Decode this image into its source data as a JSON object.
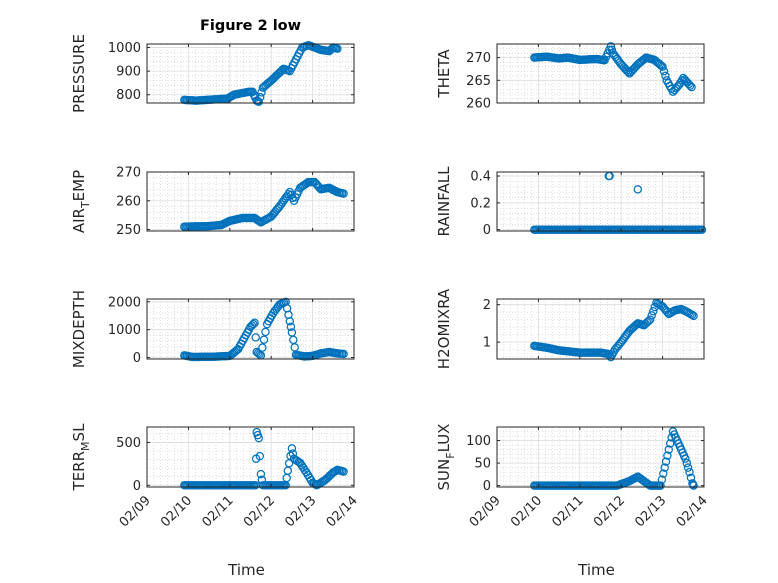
{
  "chart_data": [
    {
      "type": "scatter",
      "title": "Figure 2 low",
      "ylabel": "PRESSURE",
      "ylim": [
        765,
        1015
      ],
      "yticks": [
        800,
        900,
        1000
      ],
      "xlim": [
        "02/09",
        "02/14"
      ],
      "xticks": [
        "02/09",
        "02/10",
        "02/11",
        "02/12",
        "02/13",
        "02/14"
      ],
      "grid": true,
      "series": [
        {
          "x": [],
          "y": []
        }
      ],
      "profile": [
        [
          0.9,
          778
        ],
        [
          1.2,
          775
        ],
        [
          1.6,
          780
        ],
        [
          1.95,
          784
        ],
        [
          2.1,
          800
        ],
        [
          2.45,
          812
        ],
        [
          2.55,
          812
        ],
        [
          2.65,
          775
        ],
        [
          2.7,
          770
        ],
        [
          2.8,
          830
        ],
        [
          3.0,
          860
        ],
        [
          3.3,
          910
        ],
        [
          3.45,
          900
        ],
        [
          3.6,
          950
        ],
        [
          3.75,
          1000
        ],
        [
          3.9,
          1010
        ],
        [
          4.2,
          990
        ],
        [
          4.4,
          985
        ],
        [
          4.5,
          1000
        ],
        [
          4.6,
          995
        ]
      ]
    },
    {
      "type": "scatter",
      "title": "",
      "ylabel": "THETA",
      "ylim": [
        260,
        273
      ],
      "yticks": [
        260,
        265,
        270
      ],
      "xlim": [
        "02/09",
        "02/14"
      ],
      "xticks": [
        "02/09",
        "02/10",
        "02/11",
        "02/12",
        "02/13",
        "02/14"
      ],
      "grid": true,
      "series": [
        {
          "x": [],
          "y": []
        }
      ],
      "profile": [
        [
          0.9,
          270
        ],
        [
          1.2,
          270.2
        ],
        [
          1.5,
          269.8
        ],
        [
          1.7,
          270
        ],
        [
          2.0,
          269.5
        ],
        [
          2.4,
          269.7
        ],
        [
          2.6,
          269.4
        ],
        [
          2.75,
          272.5
        ],
        [
          2.8,
          271
        ],
        [
          3.0,
          268.5
        ],
        [
          3.2,
          266.5
        ],
        [
          3.4,
          268.5
        ],
        [
          3.6,
          270
        ],
        [
          3.8,
          269.5
        ],
        [
          4.0,
          268
        ],
        [
          4.1,
          265
        ],
        [
          4.25,
          262.5
        ],
        [
          4.4,
          264
        ],
        [
          4.5,
          265.5
        ],
        [
          4.6,
          264.5
        ],
        [
          4.7,
          263.5
        ]
      ]
    },
    {
      "type": "scatter",
      "title": "",
      "ylabel": "AIR_TEMP",
      "ylim": [
        249.5,
        270
      ],
      "yticks": [
        250,
        260,
        270
      ],
      "xlim": [
        "02/09",
        "02/14"
      ],
      "xticks": [
        "02/09",
        "02/10",
        "02/11",
        "02/12",
        "02/13",
        "02/14"
      ],
      "grid": true,
      "series": [
        {
          "x": [],
          "y": []
        }
      ],
      "profile": [
        [
          0.9,
          251
        ],
        [
          1.5,
          251.2
        ],
        [
          1.8,
          251.6
        ],
        [
          2.0,
          253
        ],
        [
          2.3,
          254
        ],
        [
          2.6,
          254
        ],
        [
          2.75,
          252.5
        ],
        [
          3.0,
          254.5
        ],
        [
          3.2,
          258
        ],
        [
          3.45,
          263
        ],
        [
          3.55,
          260
        ],
        [
          3.7,
          264.5
        ],
        [
          3.9,
          266.5
        ],
        [
          4.05,
          266.5
        ],
        [
          4.2,
          264
        ],
        [
          4.4,
          264.5
        ],
        [
          4.6,
          263
        ],
        [
          4.75,
          262.5
        ]
      ]
    },
    {
      "type": "scatter",
      "title": "",
      "ylabel": "RAINFALL",
      "ylim": [
        -0.01,
        0.43
      ],
      "yticks": [
        0,
        0.2,
        0.4
      ],
      "xlim": [
        "02/09",
        "02/14"
      ],
      "xticks": [
        "02/09",
        "02/10",
        "02/11",
        "02/12",
        "02/13",
        "02/14"
      ],
      "grid": true,
      "series": [
        {
          "x": [],
          "y": []
        }
      ],
      "profile": [
        [
          0.9,
          0
        ],
        [
          4.95,
          0
        ]
      ],
      "spikes": [
        [
          2.7,
          0.4
        ],
        [
          2.72,
          0.4
        ],
        [
          3.4,
          0.3
        ]
      ]
    },
    {
      "type": "scatter",
      "title": "",
      "ylabel": "MIXDEPTH",
      "ylim": [
        -50,
        2100
      ],
      "yticks": [
        0,
        1000,
        2000
      ],
      "xlim": [
        "02/09",
        "02/14"
      ],
      "xticks": [
        "02/09",
        "02/10",
        "02/11",
        "02/12",
        "02/13",
        "02/14"
      ],
      "grid": true,
      "series": [
        {
          "x": [],
          "y": []
        }
      ],
      "profile": [
        [
          0.9,
          80
        ],
        [
          1.1,
          20
        ],
        [
          1.6,
          30
        ],
        [
          2.0,
          60
        ],
        [
          2.2,
          300
        ],
        [
          2.35,
          700
        ],
        [
          2.5,
          1100
        ],
        [
          2.6,
          1250
        ],
        [
          2.65,
          200
        ],
        [
          2.75,
          80
        ],
        [
          2.9,
          1200
        ],
        [
          3.05,
          1600
        ],
        [
          3.2,
          1900
        ],
        [
          3.35,
          2000
        ],
        [
          3.45,
          1300
        ],
        [
          3.5,
          900
        ],
        [
          3.6,
          100
        ],
        [
          3.8,
          40
        ],
        [
          4.0,
          60
        ],
        [
          4.2,
          150
        ],
        [
          4.4,
          200
        ],
        [
          4.6,
          150
        ],
        [
          4.75,
          130
        ]
      ]
    },
    {
      "type": "scatter",
      "title": "",
      "ylabel": "H2OMIXRA",
      "ylim": [
        0.55,
        2.15
      ],
      "yticks": [
        1,
        2
      ],
      "xlim": [
        "02/09",
        "02/14"
      ],
      "xticks": [
        "02/09",
        "02/10",
        "02/11",
        "02/12",
        "02/13",
        "02/14"
      ],
      "grid": true,
      "series": [
        {
          "x": [],
          "y": []
        }
      ],
      "profile": [
        [
          0.9,
          0.9
        ],
        [
          1.2,
          0.85
        ],
        [
          1.5,
          0.78
        ],
        [
          2.0,
          0.72
        ],
        [
          2.5,
          0.72
        ],
        [
          2.7,
          0.68
        ],
        [
          2.75,
          0.6
        ],
        [
          2.85,
          0.8
        ],
        [
          3.0,
          1.0
        ],
        [
          3.2,
          1.3
        ],
        [
          3.4,
          1.5
        ],
        [
          3.55,
          1.45
        ],
        [
          3.7,
          1.6
        ],
        [
          3.85,
          2.05
        ],
        [
          4.0,
          1.95
        ],
        [
          4.15,
          1.75
        ],
        [
          4.3,
          1.85
        ],
        [
          4.45,
          1.88
        ],
        [
          4.6,
          1.8
        ],
        [
          4.75,
          1.7
        ]
      ]
    },
    {
      "type": "scatter",
      "title": "",
      "ylabel": "TERR_MSL",
      "ylim": [
        -20,
        680
      ],
      "yticks": [
        0,
        500
      ],
      "xlim": [
        "02/09",
        "02/14"
      ],
      "xticks": [
        "02/09",
        "02/10",
        "02/11",
        "02/12",
        "02/13",
        "02/14"
      ],
      "grid": true,
      "series": [
        {
          "x": [],
          "y": []
        }
      ],
      "profile": [
        [
          0.9,
          0
        ],
        [
          2.62,
          0
        ],
        [
          2.65,
          620
        ],
        [
          2.7,
          550
        ],
        [
          2.75,
          130
        ],
        [
          2.8,
          0
        ],
        [
          3.35,
          0
        ],
        [
          3.4,
          170
        ],
        [
          3.5,
          430
        ],
        [
          3.55,
          310
        ],
        [
          3.7,
          260
        ],
        [
          3.85,
          150
        ],
        [
          4.0,
          30
        ],
        [
          4.1,
          0
        ],
        [
          4.3,
          60
        ],
        [
          4.5,
          150
        ],
        [
          4.6,
          180
        ],
        [
          4.75,
          160
        ]
      ]
    },
    {
      "type": "scatter",
      "title": "",
      "ylabel": "SUN_FLUX",
      "ylim": [
        -3,
        130
      ],
      "yticks": [
        0,
        50,
        100
      ],
      "xlim": [
        "02/09",
        "02/14"
      ],
      "xticks": [
        "02/09",
        "02/10",
        "02/11",
        "02/12",
        "02/13",
        "02/14"
      ],
      "grid": true,
      "series": [
        {
          "x": [],
          "y": []
        }
      ],
      "profile": [
        [
          0.9,
          0
        ],
        [
          2.9,
          0
        ],
        [
          3.2,
          10
        ],
        [
          3.4,
          20
        ],
        [
          3.55,
          10
        ],
        [
          3.7,
          0
        ],
        [
          3.95,
          0
        ],
        [
          4.05,
          40
        ],
        [
          4.15,
          80
        ],
        [
          4.25,
          120
        ],
        [
          4.35,
          100
        ],
        [
          4.45,
          80
        ],
        [
          4.55,
          60
        ],
        [
          4.65,
          30
        ],
        [
          4.72,
          5
        ],
        [
          4.75,
          0
        ]
      ]
    }
  ],
  "xlabel": "Time"
}
